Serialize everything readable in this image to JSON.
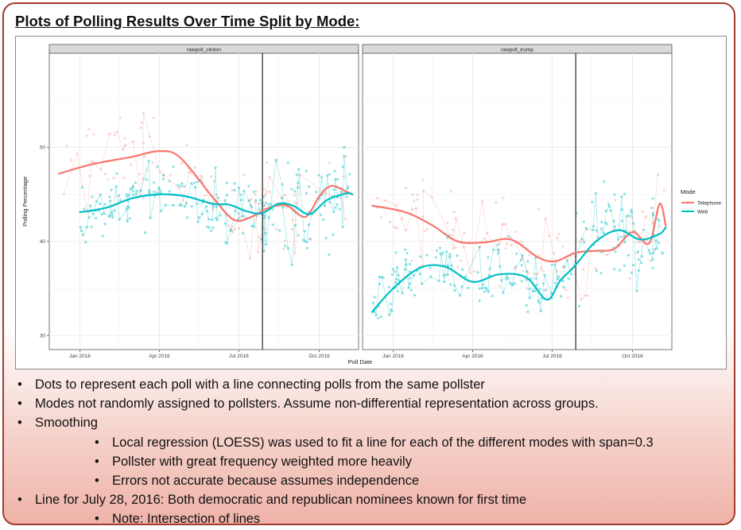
{
  "title": "Plots of Polling Results Over Time Split by Mode:",
  "chart_data": {
    "type": "line",
    "xlabel": "Poll Date",
    "ylabel": "Polling Percentage",
    "x_ticks": [
      "Jan 2016",
      "Apr 2016",
      "Jul 2016",
      "Oct 2016"
    ],
    "y_ticks": [
      30,
      40,
      50
    ],
    "xlim": [
      "2015-11-27",
      "2016-11-15"
    ],
    "ylim": [
      28.5,
      60.0
    ],
    "vline_date": "2016-07-28",
    "grid": true,
    "legend_placement": "right",
    "legend_title": "Mode",
    "facets": [
      {
        "label": "rawpoll_clinton",
        "smooths": [
          {
            "mode": "Telephone",
            "dates": [
              "2015-12-08",
              "2016-01-15",
              "2016-03-01",
              "2016-04-01",
              "2016-04-25",
              "2016-06-01",
              "2016-06-25",
              "2016-07-15",
              "2016-08-05",
              "2016-08-25",
              "2016-09-15",
              "2016-10-01",
              "2016-10-15",
              "2016-11-01",
              "2016-11-08"
            ],
            "values": [
              47.2,
              48.2,
              49.0,
              49.6,
              48.9,
              44.7,
              42.3,
              42.6,
              43.6,
              43.8,
              42.6,
              44.8,
              45.9,
              45.3,
              45.0
            ]
          },
          {
            "mode": "Web",
            "dates": [
              "2016-01-01",
              "2016-02-01",
              "2016-03-01",
              "2016-04-01",
              "2016-05-01",
              "2016-06-01",
              "2016-06-20",
              "2016-07-10",
              "2016-07-28",
              "2016-08-15",
              "2016-09-01",
              "2016-09-20",
              "2016-10-10",
              "2016-11-01",
              "2016-11-08"
            ],
            "values": [
              43.1,
              43.6,
              44.6,
              45.0,
              44.8,
              44.0,
              43.9,
              43.2,
              43.0,
              44.0,
              43.8,
              42.9,
              44.4,
              45.1,
              45.0
            ]
          }
        ]
      },
      {
        "label": "rawpoll_trump",
        "smooths": [
          {
            "mode": "Telephone",
            "dates": [
              "2015-12-08",
              "2016-01-15",
              "2016-02-15",
              "2016-03-15",
              "2016-04-15",
              "2016-05-15",
              "2016-06-15",
              "2016-07-05",
              "2016-07-28",
              "2016-08-20",
              "2016-09-10",
              "2016-10-01",
              "2016-10-20",
              "2016-11-01",
              "2016-11-08"
            ],
            "values": [
              43.8,
              43.1,
              41.7,
              40.0,
              39.9,
              40.2,
              38.3,
              37.9,
              38.8,
              39.0,
              39.2,
              41.0,
              39.8,
              44.0,
              41.7
            ]
          },
          {
            "mode": "Web",
            "dates": [
              "2015-12-08",
              "2016-01-01",
              "2016-02-01",
              "2016-03-01",
              "2016-04-01",
              "2016-05-01",
              "2016-06-01",
              "2016-06-25",
              "2016-07-10",
              "2016-07-28",
              "2016-08-20",
              "2016-09-15",
              "2016-10-10",
              "2016-11-01",
              "2016-11-08"
            ],
            "values": [
              32.5,
              35.0,
              37.2,
              37.3,
              35.7,
              36.5,
              36.2,
              33.8,
              35.8,
              37.5,
              40.0,
              41.2,
              40.2,
              40.8,
              41.5
            ]
          }
        ]
      }
    ],
    "series": [
      {
        "name": "Telephone",
        "color": "#f8766d"
      },
      {
        "name": "Web",
        "color": "#00bfc4"
      }
    ]
  },
  "bullets": [
    {
      "level": 1,
      "text": "Dots to represent each poll with a line connecting polls from the same pollster"
    },
    {
      "level": 1,
      "text": "Modes not randomly assigned to pollsters.  Assume non-differential representation across groups."
    },
    {
      "level": 1,
      "text": "Smoothing"
    },
    {
      "level": 2,
      "text": "Local regression (LOESS) was used to fit a line for each of the different modes with span=0.3"
    },
    {
      "level": 2,
      "text": "Pollster with great frequency weighted more heavily"
    },
    {
      "level": 2,
      "text": "Errors not accurate because assumes independence"
    },
    {
      "level": 1,
      "text": "Line for July 28, 2016: Both democratic and republican nominees known for first time"
    },
    {
      "level": 2,
      "text": "Note: Intersection of lines"
    }
  ]
}
